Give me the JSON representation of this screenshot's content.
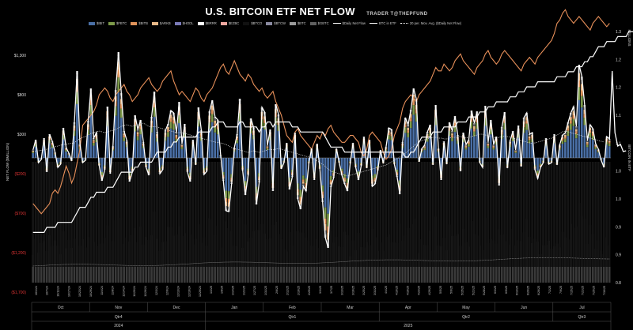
{
  "header": {
    "title": "U.S. BITCOIN ETF NET FLOW",
    "handle": "TRADER T@THEPFUND"
  },
  "legend": [
    {
      "label": "$IBIT",
      "color": "#4a6fa5",
      "kind": "bar"
    },
    {
      "label": "$FBTC",
      "color": "#7d9a4a",
      "kind": "bar"
    },
    {
      "label": "$BITB",
      "color": "#e0935a",
      "kind": "bar"
    },
    {
      "label": "$ARKB",
      "color": "#e8b888",
      "kind": "bar"
    },
    {
      "label": "$HODL",
      "color": "#7a7ab8",
      "kind": "bar"
    },
    {
      "label": "$BRRR",
      "color": "#ffffff",
      "kind": "bar"
    },
    {
      "label": "$EZBC",
      "color": "#f0a8a0",
      "kind": "bar"
    },
    {
      "label": "$BTCO",
      "color": "#111111",
      "kind": "bar"
    },
    {
      "label": "$BTCW",
      "color": "#8a8aa0",
      "kind": "bar"
    },
    {
      "label": "$BTC",
      "color": "#9a9a9a",
      "kind": "bar"
    },
    {
      "label": "$GBTC",
      "color": "#606060",
      "kind": "bar"
    },
    {
      "label": "$Daily Net Flow",
      "color": "#ffffff",
      "kind": "line"
    },
    {
      "label": "BTC in ETF",
      "color": "#ffffff",
      "kind": "line"
    },
    {
      "label": "20 per. Mov. Avg. ($Daily Net Flow)",
      "color": "#ffffff",
      "kind": "dotted"
    }
  ],
  "chart_data": {
    "type": "bar",
    "title": "U.S. BITCOIN ETF NET FLOW",
    "ylabel": "NET FLOW ($MILLION)",
    "ylabel_right": "BITCOIN IN ETF",
    "right_unit": "MILLIONS",
    "ylim": [
      -1700,
      1300
    ],
    "y_ticks": [
      {
        "value": 1300,
        "label": "$1,300",
        "negative": false
      },
      {
        "value": 800,
        "label": "$800",
        "negative": false
      },
      {
        "value": 300,
        "label": "$300",
        "negative": false
      },
      {
        "value": -200,
        "label": "($200)",
        "negative": true
      },
      {
        "value": -700,
        "label": "($700)",
        "negative": true
      },
      {
        "value": -1200,
        "label": "($1,200)",
        "negative": true
      },
      {
        "value": -1700,
        "label": "($1,700)",
        "negative": true
      }
    ],
    "ylim_right": [
      0.8,
      1.3
    ],
    "y_ticks_right": [
      "1.3",
      "1.2",
      "1.2",
      "1.1",
      "1.1",
      "1.0",
      "1.0",
      "0.9",
      "0.9",
      "0.8"
    ],
    "month_labels": [
      "Oct",
      "Nov",
      "Dec",
      "Jan",
      "Feb",
      "Mar",
      "Apr",
      "May",
      "Jun",
      "Jul"
    ],
    "quarter_labels": [
      "Qtr4",
      "Qtr1",
      "Qtr2",
      "Qtr3"
    ],
    "year_labels": [
      "2024",
      "2025"
    ],
    "date_ticks": [
      "10/1/24",
      "10/7/24",
      "10/11/24",
      "10/17/24",
      "10/23/24",
      "10/29/24",
      "11/4/24",
      "11/8/24",
      "11/14/24",
      "11/20/24",
      "11/26/24",
      "12/3/24",
      "12/9/24",
      "12/13/24",
      "12/19/24",
      "12/26/24",
      "1/2/25",
      "1/8/25",
      "1/14/25",
      "1/21/25",
      "1/27/25",
      "1/31/25",
      "2/6/25",
      "2/12/25",
      "2/19/25",
      "2/25/25",
      "3/3/25",
      "3/7/25",
      "3/13/25",
      "3/19/25",
      "3/25/25",
      "3/31/25",
      "4/4/25",
      "4/10/25",
      "4/16/25",
      "4/23/25",
      "4/29/25",
      "5/5/25",
      "5/9/25",
      "5/15/25",
      "5/21/25",
      "5/28/25",
      "6/3/25",
      "6/9/25",
      "6/13/25",
      "6/20/25",
      "6/26/25",
      "7/2/25",
      "7/9/25",
      "7/15/25",
      "7/21/25",
      "7/25/25",
      "7/30/25"
    ],
    "n_days": 210,
    "daily_net_flow": [
      100,
      230,
      -60,
      -20,
      250,
      -180,
      300,
      210,
      70,
      -120,
      -80,
      380,
      130,
      60,
      -40,
      450,
      1100,
      180,
      -60,
      -30,
      470,
      880,
      250,
      320,
      -100,
      -290,
      -150,
      650,
      -200,
      150,
      860,
      1340,
      820,
      340,
      220,
      -300,
      -180,
      540,
      360,
      480,
      200,
      -120,
      -220,
      520,
      840,
      330,
      -200,
      -150,
      350,
      430,
      600,
      570,
      320,
      710,
      180,
      430,
      -180,
      -300,
      230,
      -90,
      640,
      350,
      -210,
      -170,
      590,
      730,
      520,
      480,
      40,
      -290,
      -670,
      -680,
      -330,
      130,
      300,
      750,
      -160,
      -470,
      -220,
      500,
      380,
      -590,
      -310,
      640,
      580,
      160,
      360,
      -420,
      680,
      550,
      -140,
      -60,
      190,
      -400,
      -240,
      320,
      -520,
      -650,
      -360,
      -420,
      -70,
      120,
      -280,
      180,
      -140,
      -560,
      -1010,
      -1140,
      -370,
      -250,
      120,
      -60,
      -220,
      -330,
      -420,
      -70,
      190,
      -120,
      -280,
      -100,
      270,
      -130,
      230,
      -360,
      -330,
      -160,
      100,
      -70,
      140,
      380,
      360,
      -80,
      -240,
      -460,
      200,
      510,
      420,
      610,
      880,
      740,
      -50,
      120,
      160,
      330,
      420,
      -90,
      670,
      120,
      -280,
      210,
      -80,
      450,
      340,
      530,
      290,
      -170,
      320,
      170,
      230,
      600,
      440,
      590,
      -60,
      -120,
      660,
      200,
      480,
      170,
      270,
      -350,
      390,
      580,
      -130,
      220,
      340,
      100,
      410,
      -110,
      510,
      570,
      300,
      320,
      -150,
      -260,
      -120,
      -60,
      250,
      -80,
      -60,
      300,
      -90,
      170,
      290,
      320,
      450,
      570,
      650,
      400,
      1180,
      1030,
      670,
      220,
      420,
      370,
      180,
      110,
      -30,
      -120,
      270,
      240,
      1100,
      320,
      150,
      170,
      80,
      90
    ],
    "btc_price_k": [
      64,
      63,
      62,
      61,
      62,
      63,
      64,
      67,
      68,
      67,
      69,
      72,
      75,
      73,
      70,
      72,
      76,
      80,
      87,
      88,
      89,
      90,
      91,
      93,
      96,
      97,
      98,
      97,
      95,
      94,
      96,
      97,
      98,
      99,
      97,
      96,
      94,
      95,
      96,
      98,
      99,
      100,
      101,
      99,
      98,
      97,
      98,
      100,
      101,
      102,
      103,
      100,
      98,
      96,
      97,
      96,
      95,
      94,
      96,
      98,
      97,
      95,
      94,
      96,
      97,
      98,
      100,
      102,
      104,
      105,
      103,
      102,
      104,
      106,
      104,
      102,
      101,
      100,
      102,
      101,
      99,
      98,
      97,
      98,
      96,
      95,
      96,
      97,
      94,
      92,
      90,
      87,
      84,
      83,
      82,
      85,
      86,
      84,
      83,
      82,
      81,
      80,
      82,
      84,
      83,
      85,
      84,
      86,
      87,
      85,
      84,
      83,
      82,
      82,
      83,
      84,
      84,
      83,
      82,
      79,
      78,
      80,
      84,
      85,
      84,
      83,
      82,
      79,
      77,
      78,
      80,
      84,
      86,
      88,
      92,
      94,
      95,
      96,
      95,
      94,
      96,
      97,
      98,
      99,
      100,
      102,
      104,
      103,
      103,
      105,
      104,
      103,
      104,
      106,
      107,
      108,
      106,
      105,
      104,
      103,
      102,
      104,
      105,
      106,
      108,
      109,
      107,
      106,
      105,
      106,
      108,
      109,
      108,
      107,
      106,
      105,
      104,
      103,
      105,
      106,
      107,
      106,
      105,
      107,
      108,
      109,
      110,
      111,
      112,
      114,
      117,
      118,
      120,
      121,
      119,
      118,
      117,
      118,
      119,
      118,
      117,
      116,
      115,
      117,
      118,
      119,
      118,
      117,
      116,
      117
    ],
    "btc_in_etf_m": [
      0.9,
      0.9,
      0.9,
      0.9,
      0.9,
      0.91,
      0.91,
      0.91,
      0.91,
      0.92,
      0.92,
      0.92,
      0.92,
      0.92,
      0.92,
      0.93,
      0.94,
      0.95,
      0.95,
      0.95,
      0.96,
      0.97,
      0.97,
      0.98,
      0.98,
      0.98,
      0.98,
      0.99,
      0.99,
      0.99,
      1.0,
      1.01,
      1.02,
      1.02,
      1.02,
      1.02,
      1.02,
      1.03,
      1.03,
      1.04,
      1.04,
      1.04,
      1.04,
      1.04,
      1.05,
      1.06,
      1.06,
      1.06,
      1.06,
      1.07,
      1.07,
      1.08,
      1.08,
      1.09,
      1.09,
      1.09,
      1.09,
      1.09,
      1.09,
      1.09,
      1.1,
      1.1,
      1.1,
      1.1,
      1.1,
      1.11,
      1.11,
      1.12,
      1.12,
      1.12,
      1.11,
      1.11,
      1.11,
      1.11,
      1.11,
      1.12,
      1.12,
      1.11,
      1.11,
      1.11,
      1.11,
      1.11,
      1.1,
      1.11,
      1.11,
      1.12,
      1.12,
      1.11,
      1.12,
      1.12,
      1.12,
      1.12,
      1.12,
      1.12,
      1.11,
      1.11,
      1.11,
      1.1,
      1.1,
      1.1,
      1.1,
      1.1,
      1.1,
      1.1,
      1.1,
      1.1,
      1.09,
      1.08,
      1.07,
      1.07,
      1.07,
      1.07,
      1.07,
      1.06,
      1.06,
      1.06,
      1.06,
      1.06,
      1.06,
      1.06,
      1.06,
      1.06,
      1.06,
      1.06,
      1.06,
      1.06,
      1.06,
      1.06,
      1.06,
      1.06,
      1.06,
      1.06,
      1.06,
      1.06,
      1.06,
      1.05,
      1.05,
      1.06,
      1.06,
      1.07,
      1.08,
      1.09,
      1.09,
      1.09,
      1.09,
      1.1,
      1.1,
      1.1,
      1.1,
      1.11,
      1.11,
      1.11,
      1.11,
      1.11,
      1.12,
      1.12,
      1.12,
      1.12,
      1.13,
      1.13,
      1.13,
      1.13,
      1.14,
      1.14,
      1.14,
      1.15,
      1.15,
      1.15,
      1.16,
      1.16,
      1.16,
      1.16,
      1.16,
      1.17,
      1.17,
      1.17,
      1.18,
      1.18,
      1.18,
      1.19,
      1.19,
      1.19,
      1.19,
      1.2,
      1.2,
      1.2,
      1.2,
      1.2,
      1.2,
      1.2,
      1.21,
      1.21,
      1.21,
      1.21,
      1.22,
      1.22,
      1.22,
      1.23,
      1.23,
      1.23,
      1.24,
      1.24,
      1.25,
      1.25,
      1.26,
      1.27,
      1.27,
      1.27,
      1.28,
      1.28,
      1.28,
      1.28,
      1.29,
      1.29,
      1.29,
      1.29,
      1.3,
      1.3,
      1.3,
      1.3
    ],
    "moving_avg_20": [
      80,
      85,
      90,
      95,
      100,
      110,
      120,
      130,
      140,
      150,
      160,
      170,
      175,
      180,
      185,
      190,
      220,
      240,
      260,
      270,
      290,
      310,
      320,
      330,
      340,
      330,
      320,
      330,
      340,
      350,
      360,
      380,
      400,
      410,
      420,
      410,
      400,
      410,
      420,
      430,
      440,
      420,
      400,
      390,
      400,
      390,
      380,
      370,
      360,
      350,
      340,
      330,
      320,
      320,
      320,
      310,
      300,
      290,
      280,
      270,
      260,
      250,
      240,
      230,
      220,
      210,
      200,
      195,
      190,
      180,
      170,
      150,
      130,
      120,
      110,
      100,
      90,
      80,
      70,
      80,
      90,
      80,
      70,
      80,
      90,
      100,
      110,
      100,
      110,
      120,
      110,
      100,
      90,
      80,
      70,
      60,
      50,
      40,
      30,
      20,
      10,
      0,
      -20,
      -40,
      -60,
      -80,
      -110,
      -140,
      -170,
      -180,
      -190,
      -200,
      -210,
      -220,
      -230,
      -220,
      -210,
      -200,
      -190,
      -180,
      -170,
      -160,
      -150,
      -140,
      -130,
      -120,
      -110,
      -100,
      -90,
      -70,
      -50,
      -30,
      -10,
      10,
      30,
      60,
      90,
      120,
      150,
      180,
      200,
      220,
      230,
      240,
      250,
      260,
      260,
      250,
      250,
      240,
      240,
      250,
      260,
      260,
      270,
      270,
      260,
      250,
      260,
      270,
      280,
      290,
      300,
      300,
      290,
      280,
      270,
      260,
      250,
      260,
      270,
      280,
      270,
      260,
      250,
      240,
      230,
      220,
      210,
      200,
      190,
      180,
      190,
      200,
      210,
      220,
      230,
      240,
      250,
      270,
      290,
      310,
      330,
      340,
      330,
      320,
      310,
      300,
      290,
      280,
      270,
      260,
      250,
      240,
      230,
      220,
      210,
      200
    ],
    "stack_fractions": [
      {
        "name": "$IBIT",
        "share": 0.62
      },
      {
        "name": "$FBTC",
        "share": 0.14
      },
      {
        "name": "$BITB",
        "share": 0.07
      },
      {
        "name": "$ARKB",
        "share": 0.08
      },
      {
        "name": "$GBTC",
        "share": 0.05
      },
      {
        "name": "$BTC",
        "share": 0.04
      }
    ]
  }
}
